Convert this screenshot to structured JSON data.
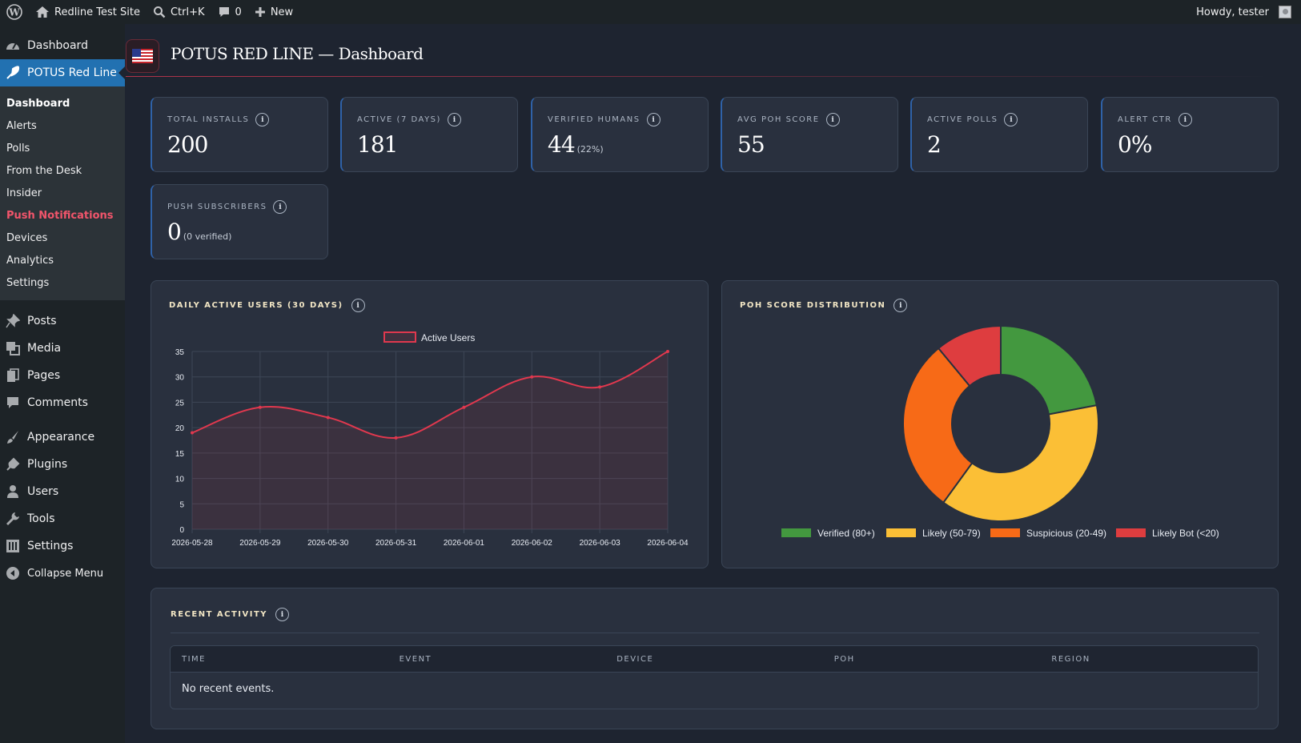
{
  "adminbar": {
    "site_name": "Redline Test Site",
    "search_shortcut": "Ctrl+K",
    "comments_count": "0",
    "new_label": "New",
    "howdy": "Howdy, tester"
  },
  "sidebar": {
    "top_items": [
      {
        "label": "Dashboard",
        "icon": "dashboard-icon"
      },
      {
        "label": "POTUS Red Line",
        "icon": "feather-icon"
      }
    ],
    "submenu": [
      "Dashboard",
      "Alerts",
      "Polls",
      "From the Desk",
      "Insider",
      "Push Notifications",
      "Devices",
      "Analytics",
      "Settings"
    ],
    "items": [
      {
        "label": "Posts",
        "icon": "pin-icon"
      },
      {
        "label": "Media",
        "icon": "media-icon"
      },
      {
        "label": "Pages",
        "icon": "pages-icon"
      },
      {
        "label": "Comments",
        "icon": "comments-icon"
      },
      {
        "label": "Appearance",
        "icon": "brush-icon"
      },
      {
        "label": "Plugins",
        "icon": "plug-icon"
      },
      {
        "label": "Users",
        "icon": "user-icon"
      },
      {
        "label": "Tools",
        "icon": "wrench-icon"
      },
      {
        "label": "Settings",
        "icon": "settings-icon"
      },
      {
        "label": "Collapse Menu",
        "icon": "collapse-icon"
      }
    ]
  },
  "header": {
    "title": "POTUS RED LINE — Dashboard",
    "badge_icon": "us-flag-icon"
  },
  "stats": [
    {
      "label": "TOTAL INSTALLS",
      "value": "200",
      "sub": ""
    },
    {
      "label": "ACTIVE (7 DAYS)",
      "value": "181",
      "sub": ""
    },
    {
      "label": "VERIFIED HUMANS",
      "value": "44",
      "sub": "(22%)"
    },
    {
      "label": "AVG POH SCORE",
      "value": "55",
      "sub": ""
    },
    {
      "label": "ACTIVE POLLS",
      "value": "2",
      "sub": ""
    },
    {
      "label": "ALERT CTR",
      "value": "0%",
      "sub": ""
    },
    {
      "label": "PUSH SUBSCRIBERS",
      "value": "0",
      "sub": "(0 verified)"
    }
  ],
  "colors": {
    "line": "#e0384e",
    "verified": "#43983f",
    "likely": "#fbbf36",
    "suspicious": "#f76a17",
    "bot": "#de3d3f"
  },
  "chart_data": [
    {
      "type": "line",
      "title": "DAILY ACTIVE USERS (30 DAYS)",
      "x": [
        "2026-05-28",
        "2026-05-29",
        "2026-05-30",
        "2026-05-31",
        "2026-06-01",
        "2026-06-02",
        "2026-06-03",
        "2026-06-04"
      ],
      "series": [
        {
          "name": "Active Users",
          "values": [
            19,
            24,
            22,
            18,
            24,
            30,
            28,
            35
          ]
        }
      ],
      "ylim": [
        0,
        35
      ],
      "yticks": [
        "0",
        "5",
        "10",
        "15",
        "20",
        "25",
        "30",
        "35"
      ],
      "legend": "top",
      "grid": true
    },
    {
      "type": "pie",
      "title": "POH SCORE DISTRIBUTION",
      "categories": [
        "Verified (80+)",
        "Likely (50-79)",
        "Suspicious (20-49)",
        "Likely Bot (<20)"
      ],
      "values": [
        22,
        38,
        29,
        11
      ],
      "legend": "bottom"
    }
  ],
  "activity": {
    "title": "RECENT ACTIVITY",
    "columns": [
      "TIME",
      "EVENT",
      "DEVICE",
      "POH",
      "REGION"
    ],
    "empty": "No recent events."
  }
}
